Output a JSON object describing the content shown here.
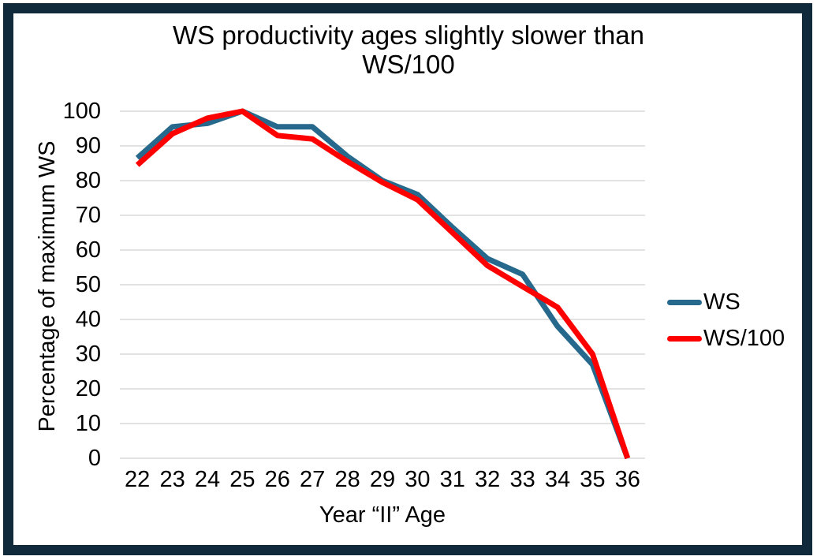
{
  "frame": {
    "border_color": "#102A3C"
  },
  "chart_data": {
    "type": "line",
    "title": "WS productivity ages slightly slower than WS/100",
    "title_lines": [
      "WS productivity ages slightly slower than",
      "WS/100"
    ],
    "xlabel": "Year “II” Age",
    "ylabel": "Percentage of maximum WS",
    "x": [
      22,
      23,
      24,
      25,
      26,
      27,
      28,
      29,
      30,
      31,
      32,
      33,
      34,
      35,
      36
    ],
    "series": [
      {
        "name": "WS",
        "color": "#26698C",
        "values": [
          86.5,
          95.5,
          96.5,
          100,
          95.5,
          95.5,
          87,
          80,
          76,
          66.5,
          57.5,
          53,
          38,
          27,
          0
        ]
      },
      {
        "name": "WS/100",
        "color": "#FE0000",
        "values": [
          84.5,
          93.5,
          98,
          100,
          93,
          92,
          85.5,
          79.5,
          74.5,
          65,
          55.5,
          49.5,
          43.5,
          30,
          0
        ]
      }
    ],
    "ylim": [
      0,
      100
    ],
    "ytick_step": 10,
    "grid": true,
    "grid_color": "#D9D9D9",
    "legend_position": "right",
    "line_width": 7
  }
}
